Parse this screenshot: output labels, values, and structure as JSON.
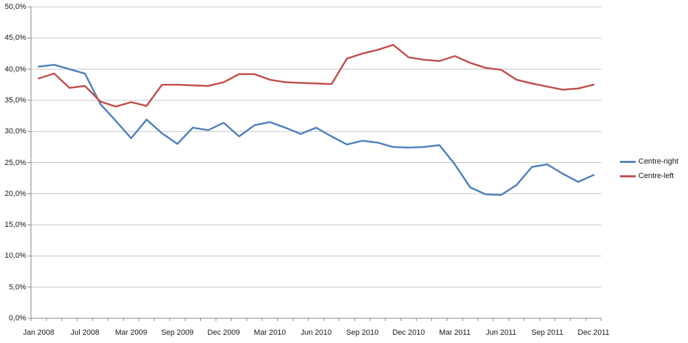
{
  "chart_data": {
    "type": "line",
    "title": "",
    "xlabel": "",
    "ylabel": "",
    "grid": true,
    "legend_position": "right",
    "ylim": [
      0,
      50
    ],
    "y_tick_step": 5,
    "y_tick_labels": [
      "0,0%",
      "5,0%",
      "10,0%",
      "15,0%",
      "20,0%",
      "25,0%",
      "30,0%",
      "35,0%",
      "40,0%",
      "45,0%",
      "50,0%"
    ],
    "x_count": 37,
    "x_tick_labels": [
      {
        "index": 0,
        "label": "Jan 2008"
      },
      {
        "index": 3,
        "label": "Jul 2008"
      },
      {
        "index": 6,
        "label": "Mar 2009"
      },
      {
        "index": 9,
        "label": "Sep 2009"
      },
      {
        "index": 12,
        "label": "Dec 2009"
      },
      {
        "index": 15,
        "label": "Mar 2010"
      },
      {
        "index": 18,
        "label": "Jun 2010"
      },
      {
        "index": 21,
        "label": "Sep 2010"
      },
      {
        "index": 24,
        "label": "Dec 2010"
      },
      {
        "index": 27,
        "label": "Mar 2011"
      },
      {
        "index": 30,
        "label": "Jun 2011"
      },
      {
        "index": 33,
        "label": "Sep 2011"
      },
      {
        "index": 36,
        "label": "Dec 2011"
      }
    ],
    "series": [
      {
        "name": "Centre-right",
        "color": "#4F81BD",
        "values": [
          40.4,
          40.7,
          40.0,
          39.3,
          34.4,
          31.7,
          28.9,
          31.9,
          29.7,
          28.0,
          30.6,
          30.2,
          31.4,
          29.2,
          31.0,
          31.5,
          30.6,
          29.6,
          30.6,
          29.2,
          27.9,
          28.5,
          28.2,
          27.5,
          27.4,
          27.5,
          27.8,
          24.7,
          21.0,
          19.9,
          19.8,
          21.4,
          24.3,
          24.7,
          23.2,
          21.9,
          23.0
        ]
      },
      {
        "name": "Centre-left",
        "color": "#C0504D",
        "values": [
          38.5,
          39.3,
          37.0,
          37.3,
          34.8,
          34.0,
          34.7,
          34.1,
          37.5,
          37.5,
          37.4,
          37.3,
          37.9,
          39.2,
          39.2,
          38.3,
          37.9,
          37.8,
          37.7,
          37.6,
          41.7,
          42.5,
          43.1,
          43.9,
          41.9,
          41.5,
          41.3,
          42.1,
          41.0,
          40.2,
          39.9,
          38.3,
          37.7,
          37.2,
          36.7,
          36.9,
          37.5
        ]
      }
    ]
  },
  "colors": {
    "background": "#FFFFFF",
    "gridline": "#C3C3C3",
    "axis": "#7F7F7F",
    "text": "#151515"
  }
}
